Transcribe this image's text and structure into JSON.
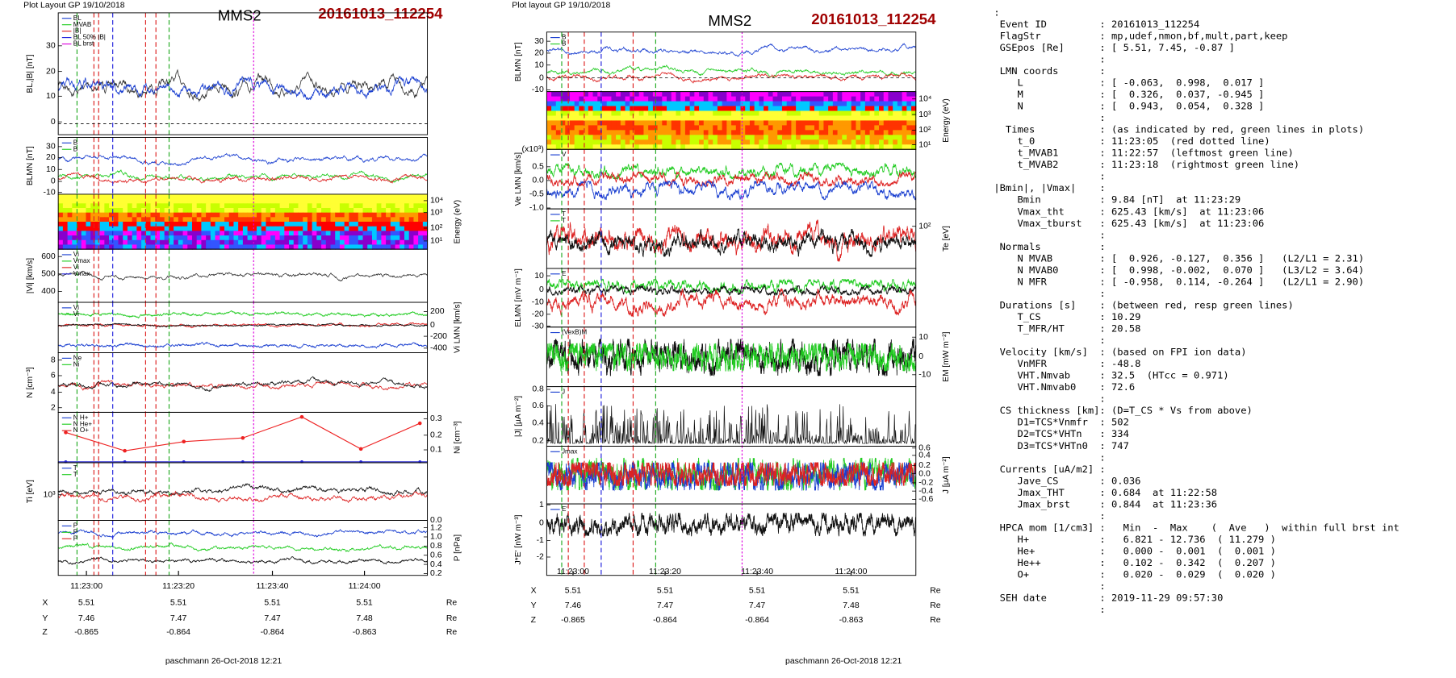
{
  "plots": [
    {
      "header": "Plot Layout GP 19/10/2018",
      "title": "MMS2",
      "event": "20161013_112254",
      "panels": [
        {
          "ylabel": "BL,|B| [nT]",
          "ticks": [
            "30",
            "20",
            "10",
            "0"
          ],
          "legend": [
            "BL",
            "MVAB",
            "|B|",
            "BL 50% |B|",
            "BL brst"
          ]
        },
        {
          "ylabel": "BLMN [nT]",
          "ticks": [
            "30",
            "20",
            "10",
            "0",
            "-10"
          ],
          "legend": [
            "B",
            "B"
          ]
        },
        {
          "ylabel": "Energy (eV)",
          "ticks": [
            "10⁴",
            "10³",
            "10²",
            "10¹"
          ]
        },
        {
          "ylabel": "|Vi| [km/s]",
          "ticks": [
            "600",
            "500",
            "400"
          ],
          "legend": [
            "Vi",
            "Vmax",
            "Vi",
            "Vmax"
          ]
        },
        {
          "ylabel": "Vi LMN [km/s]",
          "ticks": [
            "200",
            "0",
            "-200",
            "-400"
          ],
          "legend": [
            "Vi",
            "Vi"
          ]
        },
        {
          "ylabel": "N [cm⁻³]",
          "ticks": [
            "8",
            "6",
            "4",
            "2"
          ],
          "legend": [
            "Ne",
            "Ni"
          ]
        },
        {
          "ylabel": "Ni [cm⁻³]",
          "ticks": [
            "0.3",
            "0.2",
            "0.1"
          ],
          "legend": [
            "N H+",
            "N He+",
            "N O+"
          ]
        },
        {
          "ylabel": "Ti [eV]",
          "ticks": [
            "10³"
          ],
          "legend": [
            "T",
            "T"
          ]
        },
        {
          "ylabel": "P [nPa]",
          "ticks": [
            "1.2",
            "1.0",
            "0.8",
            "0.6",
            "0.4",
            "0.2",
            "0.0"
          ],
          "legend": [
            "P",
            "P",
            "P"
          ]
        }
      ],
      "times": [
        "11:23:00",
        "11:23:20",
        "11:23:40",
        "11:24:00"
      ],
      "rows": [
        [
          "X",
          "5.51",
          "5.51",
          "5.51",
          "5.51",
          "Re"
        ],
        [
          "Y",
          "7.46",
          "7.47",
          "7.47",
          "7.48",
          "Re"
        ],
        [
          "Z",
          "-0.865",
          "-0.864",
          "-0.864",
          "-0.863",
          "Re"
        ]
      ],
      "footer": "paschmann 26-Oct-2018 12:21"
    },
    {
      "header": "Plot layout GP 19/10/2018",
      "title": "MMS2",
      "event": "20161013_112254",
      "panels": [
        {
          "ylabel": "BLMN [nT]",
          "ticks": [
            "30",
            "20",
            "10",
            "0",
            "-10"
          ],
          "legend": [
            "B",
            "B"
          ]
        },
        {
          "ylabel": "Energy (eV)",
          "ticks": [
            "10⁴",
            "10³",
            "10²",
            "10¹"
          ]
        },
        {
          "ylabel": "Ve LMN [km/s]",
          "ticks": [
            "(x10³)",
            "0.5",
            "0.0",
            "-0.5",
            "-1.0"
          ],
          "legend": [
            "V"
          ]
        },
        {
          "ylabel": "Te [eV]",
          "ticks": [
            "10²"
          ],
          "legend": [
            "T",
            "T"
          ]
        },
        {
          "ylabel": "ELMN [mV m⁻¹]",
          "ticks": [
            "10",
            "0",
            "-10",
            "-20",
            "-30"
          ],
          "legend": [
            "E"
          ]
        },
        {
          "ylabel": "EM [mW m⁻²]",
          "ticks": [
            "10",
            "0",
            "-10"
          ],
          "legend": [
            "(VexB)M"
          ]
        },
        {
          "ylabel": "|J| [µA m⁻²]",
          "ticks": [
            "0.8",
            "0.6",
            "0.4",
            "0.2"
          ],
          "legend": [
            "J"
          ]
        },
        {
          "ylabel": "J [µA m⁻²]",
          "ticks": [
            "0.6",
            "0.4",
            "0.2",
            "0.0",
            "-0.2",
            "-0.4",
            "-0.6"
          ],
          "legend": [
            "Jmax"
          ]
        },
        {
          "ylabel": "J*E' [nW m⁻³]",
          "ticks": [
            "1",
            "0",
            "-1",
            "-2"
          ],
          "legend": [
            "E'"
          ]
        }
      ],
      "times": [
        "11:23:00",
        "11:23:20",
        "11:23:40",
        "11:24:00"
      ],
      "rows": [
        [
          "X",
          "5.51",
          "5.51",
          "5.51",
          "5.51",
          "Re"
        ],
        [
          "Y",
          "7.46",
          "7.47",
          "7.47",
          "7.48",
          "Re"
        ],
        [
          "Z",
          "-0.865",
          "-0.864",
          "-0.864",
          "-0.863",
          "Re"
        ]
      ],
      "footer": "paschmann 26-Oct-2018 12:21"
    }
  ],
  "summary": {
    "lines": [
      ":",
      " Event ID         : 20161013_112254",
      " FlagStr          : mp,udef,nmon,bf,mult,part,keep",
      " GSEpos [Re]      : [ 5.51, 7.45, -0.87 ]",
      "                  :",
      " LMN coords       :",
      "    L             : [ -0.063,  0.998,  0.017 ]",
      "    M             : [  0.326,  0.037, -0.945 ]",
      "    N             : [  0.943,  0.054,  0.328 ]",
      "                  :",
      "  Times           : (as indicated by red, green lines in plots)",
      "    t_0           : 11:23:05  (red dotted line)",
      "    t_MVAB1       : 11:22:57  (leftmost green line)",
      "    t_MVAB2       : 11:23:18  (rightmost green line)",
      "                  :",
      "|Bmin|, |Vmax|    :",
      "    Bmin          : 9.84 [nT]  at 11:23:29",
      "    Vmax_tht      : 625.43 [km/s]  at 11:23:06",
      "    Vmax_tburst   : 625.43 [km/s]  at 11:23:06",
      "                  :",
      " Normals          :",
      "    N MVAB        : [  0.926, -0.127,  0.356 ]   (L2/L1 = 2.31)",
      "    N MVAB0       : [  0.998, -0.002,  0.070 ]   (L3/L2 = 3.64)",
      "    N MFR         : [ -0.958,  0.114, -0.264 ]   (L2/L1 = 2.90)",
      "                  :",
      " Durations [s]    : (between red, resp green lines)",
      "    T_CS          : 10.29",
      "    T_MFR/HT      : 20.58",
      "                  :",
      " Velocity [km/s]  : (based on FPI ion data)",
      "    VnMFR         : -48.8",
      "    VHT.Nmvab     : 32.5  (HTcc = 0.971)",
      "    VHT.Nmvab0    : 72.6",
      "                  :",
      " CS thickness [km]: (D=T_CS * Vs from above)",
      "    D1=TCS*Vnmfr  : 502",
      "    D2=TCS*VHTn   : 334",
      "    D3=TCS*VHTn0  : 747",
      "                  :",
      " Currents [uA/m2] :",
      "    Jave_CS       : 0.036",
      "    Jmax_THT      : 0.684  at 11:22:58",
      "    Jmax_brst     : 0.844  at 11:23:36",
      "                  :",
      " HPCA mom [1/cm3] :   Min  -  Max    (  Ave   )  within full brst int",
      "    H+            :   6.821 - 12.736  ( 11.279 )",
      "    He+           :   0.000 -  0.001  (  0.001 )",
      "    He++          :   0.102 -  0.342  (  0.207 )",
      "    O+            :   0.020 -  0.029  (  0.020 )",
      "                  :",
      " SEH date         : 2019-11-29 09:57:30",
      "                  :"
    ]
  }
}
